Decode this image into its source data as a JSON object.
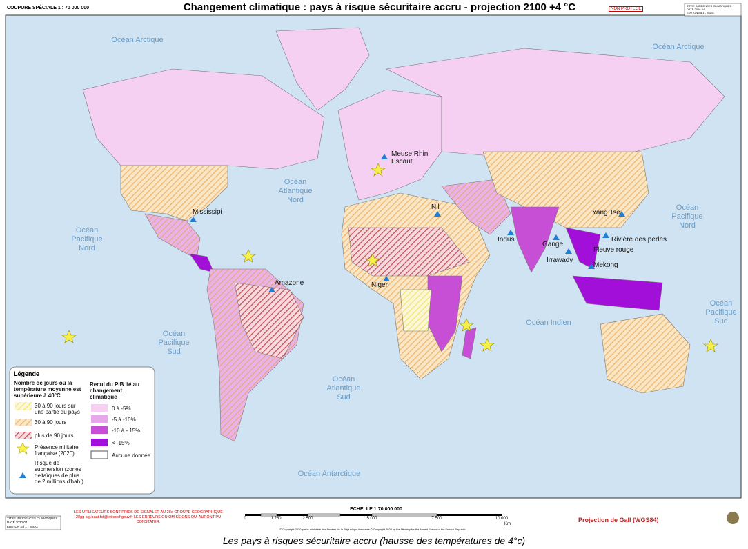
{
  "header": {
    "scale_note": "COUPURE SPÉCIALE 1 : 70 000 000",
    "title": "Changement climatique : pays à risque sécuritaire accru - projection 2100 +4 °C",
    "classification": "NON PROTÉGÉ",
    "cartouche": [
      "TITRE  INCIDENCES CLIMATIQUES",
      "DATE  2020-04",
      "EDITION  Ed 1 - 28GG"
    ]
  },
  "map": {
    "oceans": [
      "Océan Arctique",
      "Océan Arctique",
      "Océan Atlantique Nord",
      "Océan Pacifique Nord",
      "Océan Pacifique Nord",
      "Océan Indien",
      "Océan Pacifique Sud",
      "Océan Atlantique Sud",
      "Océan Pacifique Sud",
      "Océan Antarctique"
    ],
    "rivers": [
      "Mississipi",
      "Meuse Rhin Escaut",
      "Nil",
      "Indus",
      "Gange",
      "Irrawady",
      "Yang Tse",
      "Rivière des perles",
      "Fleuve rouge",
      "Mekong",
      "Niger",
      "Amazone"
    ]
  },
  "legend": {
    "title": "Légende",
    "days": {
      "heading": "Nombre de jours où la température moyenne est supérieure à 40°C",
      "items": [
        "30 à 90 jours sur une partie du pays",
        "30 à 90 jours",
        "plus de 90 jours"
      ]
    },
    "gdp": {
      "heading": "Recul du PIB lié au changement climatique",
      "items": [
        "0 à -5%",
        "-5 à -10%",
        "-10 à - 15%",
        "< -15%",
        "Aucune donnée"
      ]
    },
    "military": "Présence militaire française (2020)",
    "submersion": "Risque de submersion (zones deltaïques de plus de 2 millions d'hab.)"
  },
  "footer": {
    "cartouche": [
      "TITRE  INCIDENCES CLIMATIQUES",
      "DATE  2020-04",
      "EDITION  Ed 1 - 28GG"
    ],
    "notice": "LES UTILISATEURS SONT PRIÉS DE SIGNALER AU 28e GROUPE GÉOGRAPHIQUE 28gg-sig.baat.fct@intradef.gouv.fr LES ERREURS OU OMISSIONS QUI AURONT PU CONSTATER.",
    "scale_title": "ECHELLE  1:70 000 000",
    "scale_ticks": [
      "0",
      "1 250",
      "2 500",
      "5 000",
      "7 500",
      "10 000"
    ],
    "scale_unit": "Km",
    "copyright": "© Copyright 2020 par le ministère des Armées de la République française © Copyright 2020 by the Ministry for the Armed Forces of the French Republic",
    "projection": "Projection de Gall (WGS84)"
  },
  "caption": "Les pays à risques sécuritaire accru (hausse des températures de 4°c)"
}
